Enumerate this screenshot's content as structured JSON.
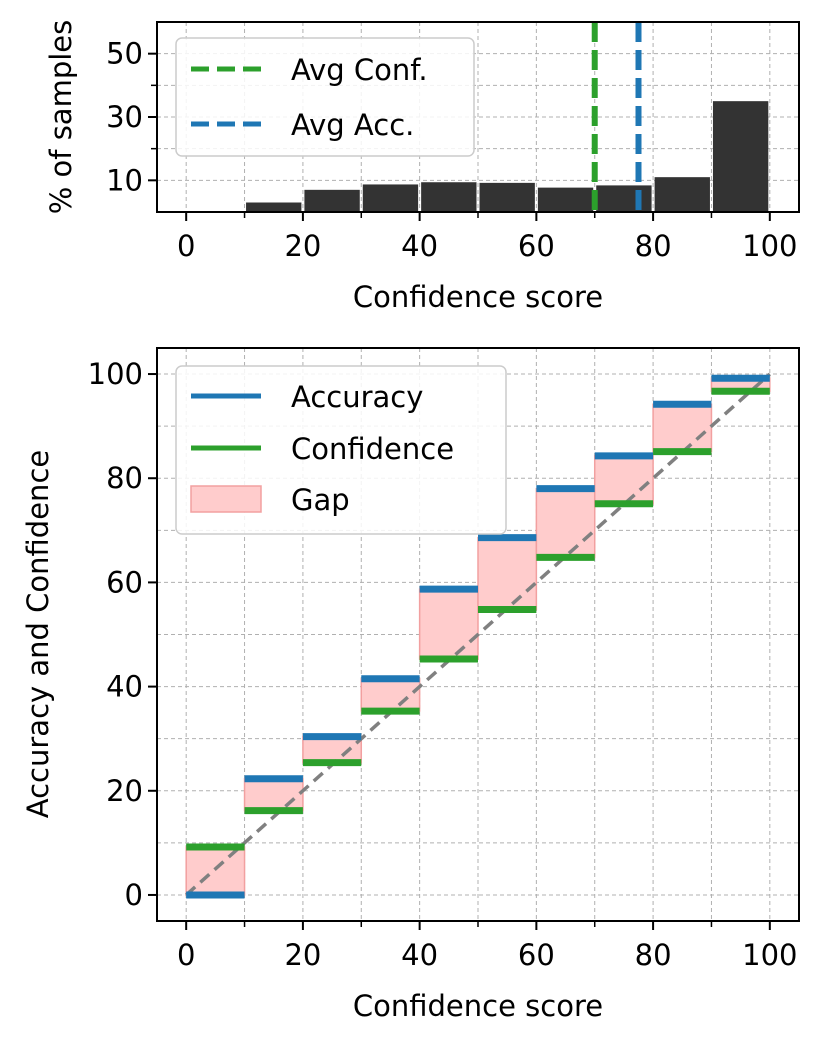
{
  "colors": {
    "bar": "#333333",
    "accuracy": "#1f77b4",
    "confidence": "#2ca02c",
    "gap_fill": "#ffcccc",
    "gap_edge": "#f2a0a0",
    "diagonal": "#808080",
    "grid": "#b0b0b0"
  },
  "chart_data": [
    {
      "type": "bar",
      "title": "",
      "xlabel": "Confidence score",
      "ylabel": "% of samples",
      "xlim": [
        -5,
        105
      ],
      "ylim": [
        0,
        60
      ],
      "xticks": [
        0,
        20,
        40,
        60,
        80,
        100
      ],
      "xticks_minor": [
        10,
        30,
        50,
        70,
        90
      ],
      "yticks": [
        10,
        30,
        50
      ],
      "yticks_minor": [
        20,
        40
      ],
      "grid": true,
      "bin_edges": [
        0,
        10,
        20,
        30,
        40,
        50,
        60,
        70,
        80,
        90,
        100
      ],
      "values": [
        0,
        3,
        7,
        8.7,
        9.4,
        9.2,
        7.7,
        8.4,
        11,
        35
      ],
      "vlines": [
        {
          "name": "Avg Conf.",
          "x": 70,
          "color": "#2ca02c",
          "style": "dashed"
        },
        {
          "name": "Avg Acc.",
          "x": 77.5,
          "color": "#1f77b4",
          "style": "dashed"
        }
      ],
      "legend": {
        "position": "upper-left",
        "entries": [
          "Avg Conf.",
          "Avg Acc."
        ]
      }
    },
    {
      "type": "step",
      "title": "",
      "xlabel": "Confidence score",
      "ylabel": "Accuracy and Confidence",
      "xlim": [
        -5,
        105
      ],
      "ylim": [
        -5,
        105
      ],
      "xticks": [
        0,
        20,
        40,
        60,
        80,
        100
      ],
      "xticks_minor": [
        10,
        30,
        50,
        70,
        90
      ],
      "yticks": [
        0,
        20,
        40,
        60,
        80,
        100
      ],
      "grid": true,
      "bin_edges": [
        0,
        10,
        20,
        30,
        40,
        50,
        60,
        70,
        80,
        90,
        100
      ],
      "series": [
        {
          "name": "Accuracy",
          "values": [
            0,
            22.3,
            30.4,
            41.5,
            58.7,
            68.6,
            78,
            84.3,
            94.2,
            99.2
          ]
        },
        {
          "name": "Confidence",
          "values": [
            9.2,
            16.2,
            25.4,
            35.3,
            45.3,
            54.8,
            64.8,
            75.1,
            85.1,
            96.7
          ]
        }
      ],
      "reference_line": {
        "from": [
          0,
          0
        ],
        "to": [
          100,
          100
        ],
        "style": "dashed"
      },
      "legend": {
        "position": "upper-left",
        "entries": [
          "Accuracy",
          "Confidence",
          "Gap"
        ]
      }
    }
  ]
}
